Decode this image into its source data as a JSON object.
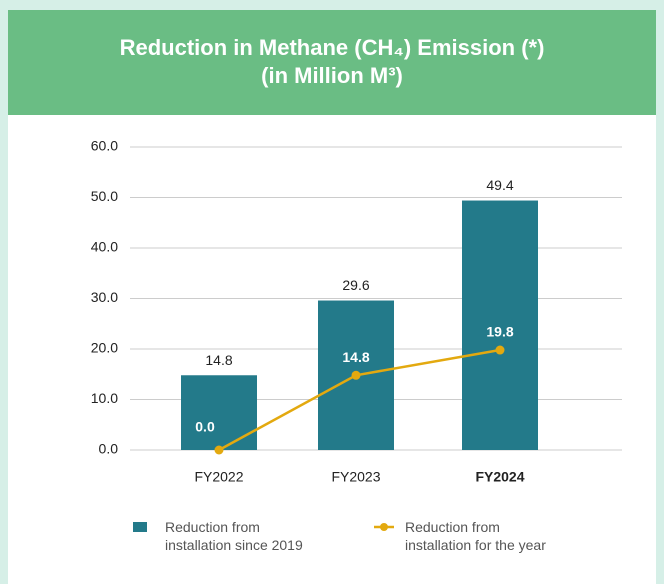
{
  "chart_data": {
    "type": "bar_line",
    "title": "Reduction in Methane (CH₄) Emission (*)",
    "subtitle": "(in Million M³)",
    "categories": [
      "FY2022",
      "FY2023",
      "FY2024"
    ],
    "category_bold": [
      false,
      false,
      true
    ],
    "series": [
      {
        "name": "Reduction from\ninstallation since 2019",
        "type": "bar",
        "color": "#237a8a",
        "values": [
          14.8,
          29.6,
          49.4
        ]
      },
      {
        "name": "Reduction from\ninstallation for the year",
        "type": "line",
        "color": "#e3a90f",
        "values": [
          0,
          14.8,
          19.8
        ],
        "value_labels": [
          "0.0",
          "14.8",
          "19.8"
        ]
      }
    ],
    "ylim": [
      0,
      60
    ],
    "yticks": [
      {
        "value": 0,
        "label": "0.0"
      },
      {
        "value": 10,
        "label": "10.0"
      },
      {
        "value": 20,
        "label": "20.0"
      },
      {
        "value": 30,
        "label": "30.0"
      },
      {
        "value": 40,
        "label": "40.0"
      },
      {
        "value": 50,
        "label": "50.0"
      },
      {
        "value": 60,
        "label": "60.0"
      }
    ],
    "grid": true
  }
}
